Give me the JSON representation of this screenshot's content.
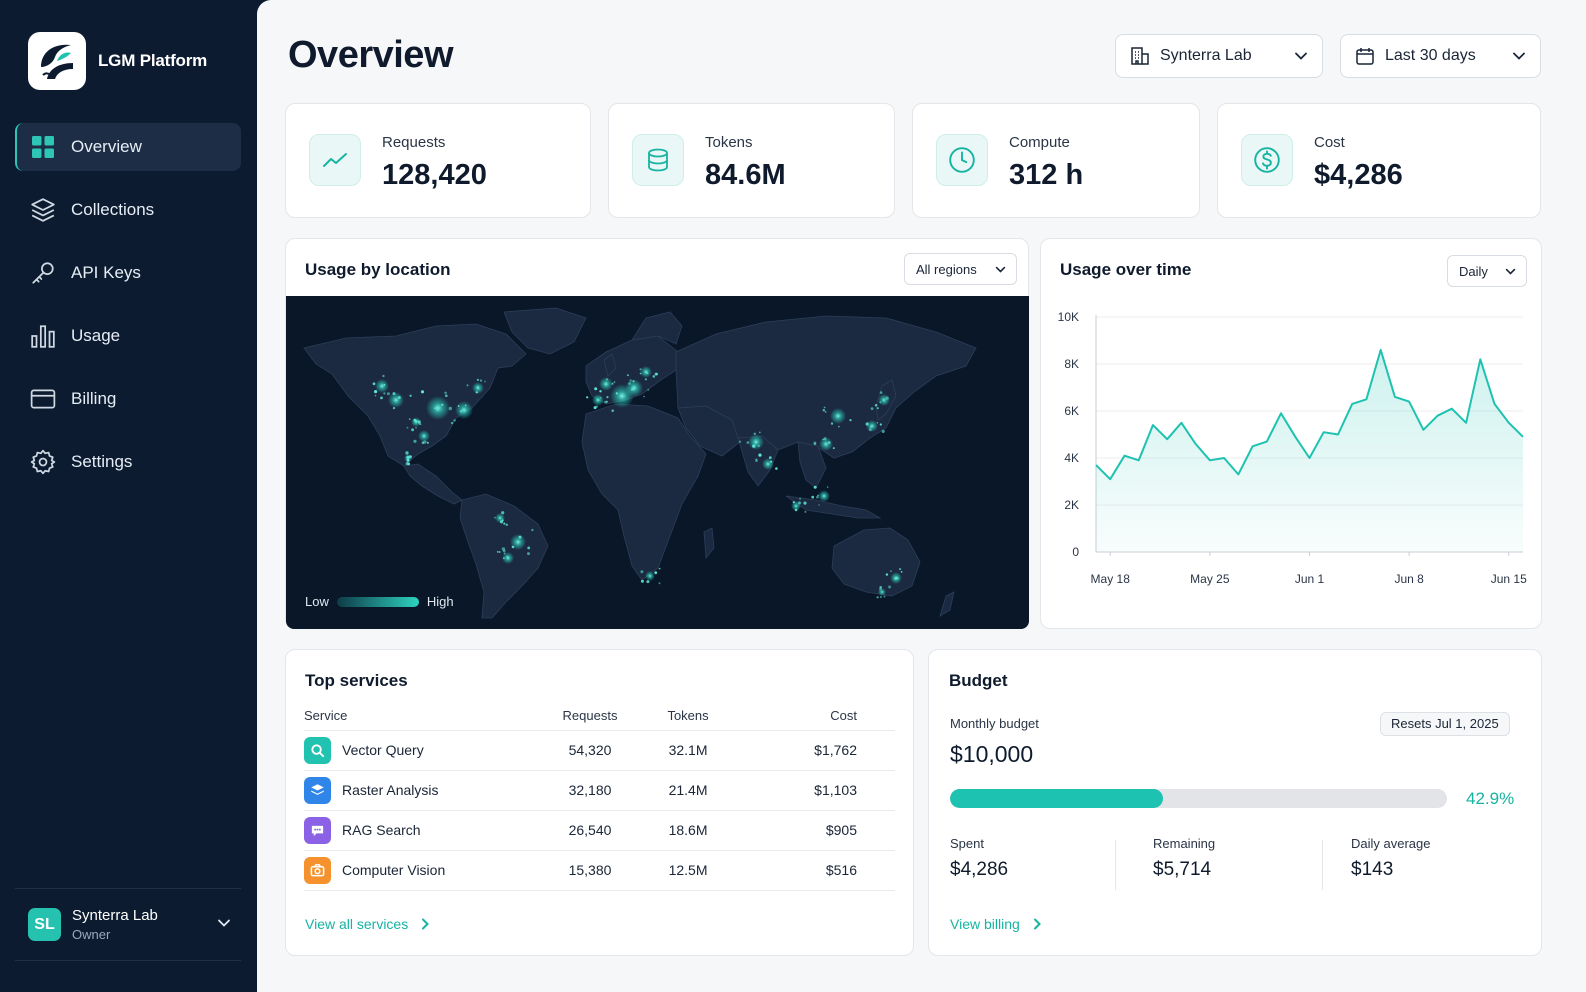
{
  "app": {
    "name": "LGM Platform"
  },
  "sidebar": {
    "items": [
      {
        "label": "Overview",
        "icon": "grid-icon",
        "active": true
      },
      {
        "label": "Collections",
        "icon": "layers-icon"
      },
      {
        "label": "API Keys",
        "icon": "key-icon"
      },
      {
        "label": "Usage",
        "icon": "bar-chart-icon"
      },
      {
        "label": "Billing",
        "icon": "credit-card-icon"
      },
      {
        "label": "Settings",
        "icon": "gear-icon"
      }
    ],
    "user": {
      "initials": "SL",
      "name": "Synterra Lab",
      "role": "Owner"
    }
  },
  "header": {
    "title": "Overview",
    "org_select": "Synterra Lab",
    "range_select": "Last 30 days"
  },
  "stats": [
    {
      "label": "Requests",
      "value": "128,420",
      "icon": "trend-icon"
    },
    {
      "label": "Tokens",
      "value": "84.6M",
      "icon": "database-icon"
    },
    {
      "label": "Compute",
      "value": "312 h",
      "icon": "clock-icon"
    },
    {
      "label": "Cost",
      "value": "$4,286",
      "icon": "dollar-icon"
    }
  ],
  "map_card": {
    "title": "Usage by location",
    "filter": "All regions",
    "legend_low": "Low",
    "legend_high": "High"
  },
  "time_card": {
    "title": "Usage over time",
    "interval": "Daily"
  },
  "chart_data": {
    "type": "area",
    "title": "Usage over time",
    "x": [
      "May 17",
      "May 18",
      "May 19",
      "May 20",
      "May 21",
      "May 22",
      "May 23",
      "May 24",
      "May 25",
      "May 26",
      "May 27",
      "May 28",
      "May 29",
      "May 30",
      "May 31",
      "Jun 1",
      "Jun 2",
      "Jun 3",
      "Jun 4",
      "Jun 5",
      "Jun 6",
      "Jun 7",
      "Jun 8",
      "Jun 9",
      "Jun 10",
      "Jun 11",
      "Jun 12",
      "Jun 13",
      "Jun 14",
      "Jun 15",
      "Jun 16"
    ],
    "values": [
      3700,
      3100,
      4100,
      3900,
      5400,
      4800,
      5500,
      4600,
      3900,
      4000,
      3300,
      4500,
      4700,
      5900,
      4900,
      4000,
      5100,
      5000,
      6300,
      6500,
      8600,
      6600,
      6400,
      5200,
      5800,
      6100,
      5500,
      8200,
      6300,
      5500,
      4900
    ],
    "xticks": [
      "May 18",
      "May 25",
      "Jun 1",
      "Jun 8",
      "Jun 15"
    ],
    "yticks": [
      "0",
      "2K",
      "4K",
      "6K",
      "8K",
      "10K"
    ],
    "ylim": [
      0,
      10000
    ],
    "grid": true,
    "color": "#1ec2b0"
  },
  "services": {
    "title": "Top services",
    "columns": [
      "Service",
      "Requests",
      "Tokens",
      "Cost"
    ],
    "rows": [
      {
        "name": "Vector Query",
        "requests": "54,320",
        "tokens": "32.1M",
        "cost": "$1,762",
        "icon": "search-icon",
        "color": "#22c2b0"
      },
      {
        "name": "Raster Analysis",
        "requests": "32,180",
        "tokens": "21.4M",
        "cost": "$1,103",
        "icon": "layers-icon",
        "color": "#2f86e8"
      },
      {
        "name": "RAG Search",
        "requests": "26,540",
        "tokens": "18.6M",
        "cost": "$905",
        "icon": "chat-icon",
        "color": "#8b62e6"
      },
      {
        "name": "Computer Vision",
        "requests": "15,380",
        "tokens": "12.5M",
        "cost": "$516",
        "icon": "camera-icon",
        "color": "#f5922d"
      }
    ],
    "link": "View all services"
  },
  "budget": {
    "title": "Budget",
    "monthly_label": "Monthly budget",
    "monthly_value": "$10,000",
    "resets": "Resets Jul 1, 2025",
    "progress": 0.429,
    "percent_text": "42.9%",
    "spent_label": "Spent",
    "spent_value": "$4,286",
    "remaining_label": "Remaining",
    "remaining_value": "$5,714",
    "daily_label": "Daily average",
    "daily_value": "$143",
    "link": "View billing"
  },
  "colors": {
    "accent": "#1ec2b0",
    "sidebar": "#0c1b30",
    "map_bg": "#0a1729"
  }
}
